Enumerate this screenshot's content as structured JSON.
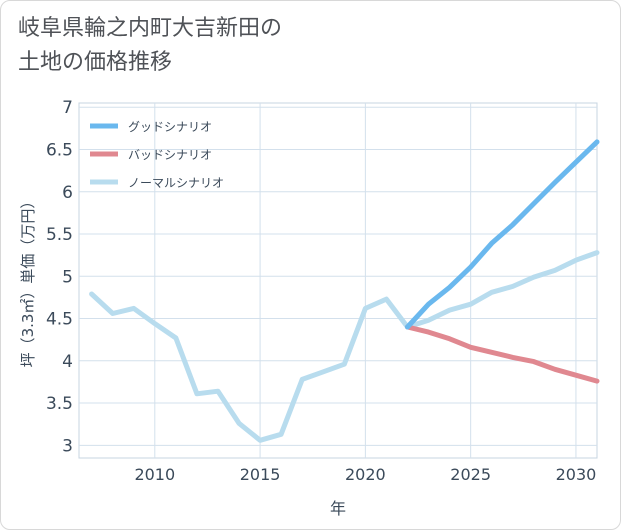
{
  "title_line1": "岐阜県輪之内町大吉新田の",
  "title_line2": "土地の価格推移",
  "chart_data": {
    "type": "line",
    "xlabel": "年",
    "ylabel": "坪（3.3㎡）単価（万円）",
    "xlim": [
      2006.4,
      2031
    ],
    "ylim": [
      2.85,
      7.05
    ],
    "x_ticks": [
      2010,
      2015,
      2020,
      2025,
      2030
    ],
    "y_ticks": [
      3,
      3.5,
      4,
      4.5,
      5,
      5.5,
      6,
      6.5,
      7
    ],
    "y_tick_labels": [
      "3",
      "3.5",
      "4",
      "4.5",
      "5",
      "5.5",
      "6",
      "6.5",
      "7"
    ],
    "grid": true,
    "legend_position": "top-left",
    "series": [
      {
        "name": "グッドシナリオ",
        "color": "#6ab8ee",
        "x": [
          2022,
          2023,
          2024,
          2025,
          2026,
          2027,
          2028,
          2029,
          2030,
          2031
        ],
        "values": [
          4.4,
          4.67,
          4.87,
          5.11,
          5.39,
          5.61,
          5.86,
          6.11,
          6.35,
          6.59
        ]
      },
      {
        "name": "バッドシナリオ",
        "color": "#e08890",
        "x": [
          2022,
          2023,
          2024,
          2025,
          2026,
          2027,
          2028,
          2029,
          2030,
          2031
        ],
        "values": [
          4.4,
          4.34,
          4.26,
          4.16,
          4.1,
          4.04,
          3.99,
          3.9,
          3.83,
          3.76
        ]
      },
      {
        "name": "ノーマルシナリオ",
        "color": "#b8dcee",
        "x": [
          2007,
          2008,
          2009,
          2010,
          2011,
          2012,
          2013,
          2014,
          2015,
          2016,
          2017,
          2018,
          2019,
          2020,
          2021,
          2022,
          2023,
          2024,
          2025,
          2026,
          2027,
          2028,
          2029,
          2030,
          2031
        ],
        "values": [
          4.79,
          4.56,
          4.62,
          4.44,
          4.27,
          3.61,
          3.64,
          3.26,
          3.06,
          3.13,
          3.78,
          3.87,
          3.96,
          4.62,
          4.73,
          4.4,
          4.48,
          4.6,
          4.67,
          4.81,
          4.88,
          4.99,
          5.07,
          5.19,
          5.28
        ]
      }
    ]
  }
}
